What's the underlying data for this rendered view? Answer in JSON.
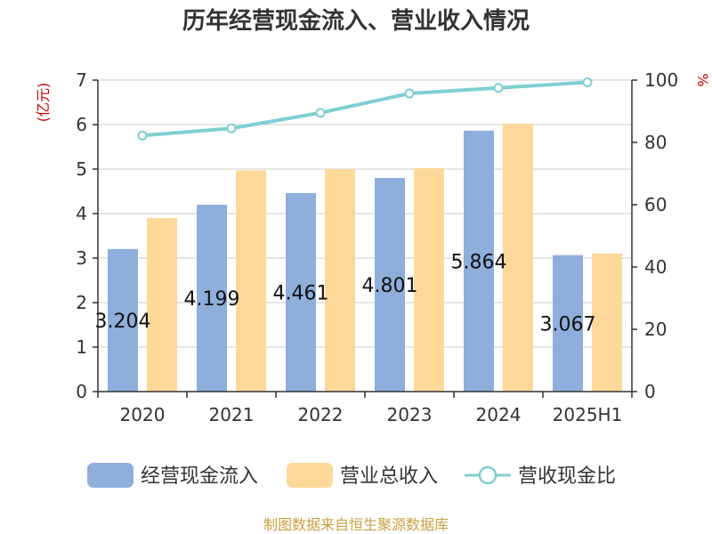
{
  "chart_data": {
    "type": "bar",
    "title": "历年经营现金流入、营业收入情况",
    "categories": [
      "2020",
      "2021",
      "2022",
      "2023",
      "2024",
      "2025H1"
    ],
    "y_left": {
      "unit": "(亿元)",
      "ylim": [
        0,
        7
      ],
      "ticks": [
        "0",
        "1",
        "2",
        "3",
        "4",
        "5",
        "6",
        "7"
      ]
    },
    "y_right": {
      "unit": "%",
      "ylim": [
        0,
        100
      ],
      "ticks": [
        "0",
        "20",
        "40",
        "60",
        "80",
        "100"
      ]
    },
    "series": [
      {
        "name": "经营现金流入",
        "kind": "bar",
        "axis": "left",
        "color": "#8eaedb",
        "values": [
          3.204,
          4.199,
          4.461,
          4.801,
          5.864,
          3.067
        ],
        "labels": [
          "3.204",
          "4.199",
          "4.461",
          "4.801",
          "5.864",
          "3.067"
        ]
      },
      {
        "name": "营业总收入",
        "kind": "bar",
        "axis": "left",
        "color": "#fdd898",
        "values": [
          3.9,
          4.97,
          5.0,
          5.02,
          6.02,
          3.1
        ]
      },
      {
        "name": "营收现金比",
        "kind": "line",
        "axis": "right",
        "color": "#7ecfd1",
        "values": [
          82.2,
          84.5,
          89.5,
          95.7,
          97.5,
          99.3
        ]
      }
    ],
    "grid": true,
    "legend_position": "bottom",
    "source": "制图数据来自恒生聚源数据库"
  }
}
